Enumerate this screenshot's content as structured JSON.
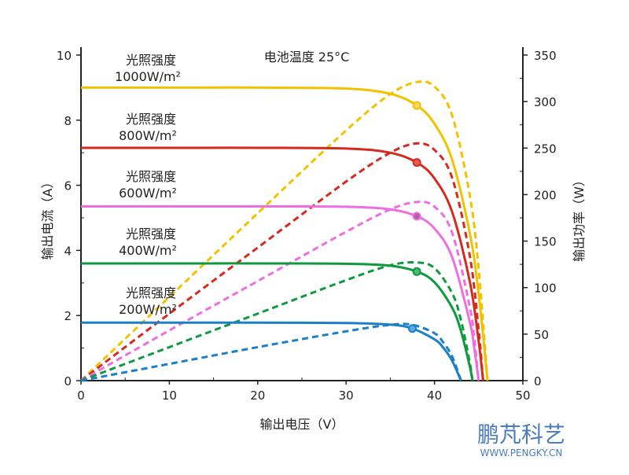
{
  "chart_data": {
    "type": "line",
    "title": "电池温度 25°C",
    "xlabel": "输出电压（V）",
    "ylabel": "输出电流（A）",
    "y2label": "输出功率（W）",
    "xlim": [
      0,
      50
    ],
    "ylim": [
      0,
      10
    ],
    "y2lim": [
      0,
      350
    ],
    "xticks": [
      "0",
      "10",
      "20",
      "30",
      "40",
      "50"
    ],
    "yticks": [
      "0",
      "2",
      "4",
      "6",
      "8",
      "10"
    ],
    "y2ticks": [
      "0",
      "50",
      "100",
      "150",
      "200",
      "250",
      "300",
      "350"
    ],
    "grid": false,
    "series": [
      {
        "label1": "光照强度",
        "label2": "1000W/m²",
        "color": "#f2c200",
        "marker_fill": "#f7d860",
        "voltage": [
          0,
          10,
          20,
          30,
          35,
          38,
          40,
          42,
          44,
          45,
          46
        ],
        "current": [
          9,
          9,
          9,
          8.97,
          8.81,
          8.45,
          7.89,
          6.78,
          4.53,
          2.66,
          0
        ],
        "power": [
          0,
          90,
          180,
          269,
          308,
          321,
          316,
          285,
          199,
          120,
          0
        ],
        "mpp": {
          "voltage": 38,
          "current": 8.45
        }
      },
      {
        "label1": "光照强度",
        "label2": "800W/m²",
        "color": "#d42a20",
        "marker_fill": "#e45a50",
        "voltage": [
          0,
          10,
          20,
          30,
          35,
          38,
          40,
          42,
          44,
          45,
          45.5
        ],
        "current": [
          7.15,
          7.15,
          7.15,
          7.13,
          7.0,
          6.7,
          6.21,
          5.18,
          3.04,
          1.21,
          0
        ],
        "power": [
          0,
          72,
          143,
          214,
          245,
          255,
          248,
          218,
          134,
          54,
          0
        ],
        "mpp": {
          "voltage": 38,
          "current": 6.7
        }
      },
      {
        "label1": "光照强度",
        "label2": "600W/m²",
        "color": "#ee6ee0",
        "marker_fill": "#b060a8",
        "voltage": [
          0,
          10,
          20,
          30,
          35,
          38,
          40,
          42,
          44,
          44.5,
          45
        ],
        "current": [
          5.35,
          5.35,
          5.35,
          5.34,
          5.26,
          5.05,
          4.67,
          3.79,
          1.8,
          1.0,
          0
        ],
        "power": [
          0,
          54,
          107,
          160,
          184,
          192,
          187,
          159,
          79,
          45,
          0
        ],
        "mpp": {
          "voltage": 38,
          "current": 5.05
        }
      },
      {
        "label1": "光照强度",
        "label2": "400W/m²",
        "color": "#109a40",
        "marker_fill": "#50b870",
        "voltage": [
          0,
          10,
          20,
          30,
          35,
          38,
          40,
          42,
          43,
          44,
          44.3
        ],
        "current": [
          3.6,
          3.6,
          3.6,
          3.59,
          3.53,
          3.35,
          3.02,
          2.24,
          1.52,
          0.43,
          0
        ],
        "power": [
          0,
          36,
          72,
          108,
          124,
          127,
          121,
          94,
          65,
          19,
          0
        ],
        "mpp": {
          "voltage": 38,
          "current": 3.35
        }
      },
      {
        "label1": "光照强度",
        "label2": "200W/m²",
        "color": "#1a80c8",
        "marker_fill": "#60a8e0",
        "voltage": [
          0,
          10,
          20,
          30,
          35,
          37.5,
          40,
          41,
          42,
          43
        ],
        "current": [
          1.78,
          1.78,
          1.78,
          1.77,
          1.72,
          1.6,
          1.27,
          1.01,
          0.61,
          0
        ],
        "power": [
          0,
          18,
          36,
          53,
          60,
          60,
          51,
          41,
          26,
          0
        ],
        "mpp": {
          "voltage": 37.5,
          "current": 1.6
        }
      }
    ]
  },
  "logo": {
    "name": "鹏芃科艺",
    "url": "WWW.PENGKY.CN"
  }
}
